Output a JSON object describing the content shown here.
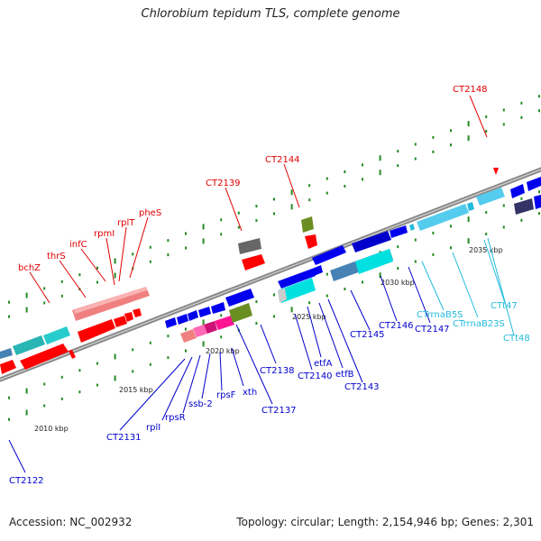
{
  "title": "Chlorobium tepidum TLS, complete genome",
  "accession": "Accession: NC_002932",
  "summary": "Topology: circular; Length: 2,154,946 bp; Genes: 2,301",
  "colors": {
    "label_top": "#e00000",
    "label_bottom": "#0000cc",
    "label_rna": "#22bbdd",
    "backbone": "#888888",
    "tick": "#228b22"
  },
  "scale_labels": [
    "2010 kbp",
    "2015 kbp",
    "2020 kbp",
    "2025 kbp",
    "2030 kbp",
    "2035 kbp"
  ],
  "labels_top": [
    "bchZ",
    "thrS",
    "infC",
    "rpmI",
    "rplT",
    "pheS",
    "CT2139",
    "CT2144",
    "CT2148"
  ],
  "labels_bottom": [
    "CT2122",
    "CT2131",
    "rplI",
    "rpsR",
    "ssb-2",
    "rpsF",
    "xth",
    "CT2137",
    "CT2138",
    "CT2140",
    "etfA",
    "etfB",
    "CT2143",
    "CT2145",
    "CT2146",
    "CT2147"
  ],
  "labels_rna": [
    "CTrrnaB5S",
    "CTrrnaB23S",
    "CTt47",
    "CTt48"
  ]
}
